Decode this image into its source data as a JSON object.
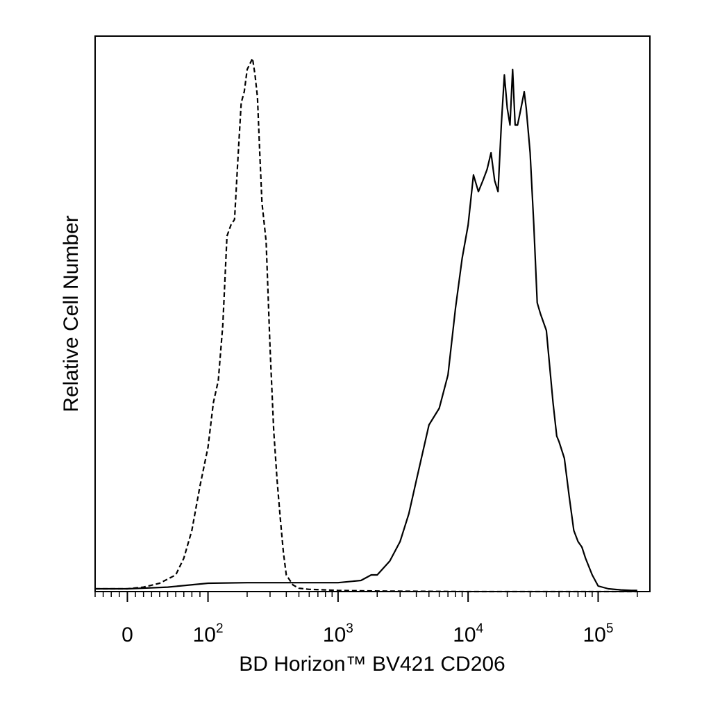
{
  "chart_data": {
    "type": "line",
    "title": "",
    "xlabel": "BD Horizon™ BV421 CD206",
    "ylabel": "Relative Cell Number",
    "x_scale": "biexponential",
    "xlim": [
      -40,
      250000
    ],
    "ylim": [
      0,
      1.0
    ],
    "grid": false,
    "legend": "none",
    "x_ticks": [
      {
        "value": 0,
        "base": "0",
        "exp": ""
      },
      {
        "value": 100,
        "base": "10",
        "exp": "2"
      },
      {
        "value": 1000,
        "base": "10",
        "exp": "3"
      },
      {
        "value": 10000,
        "base": "10",
        "exp": "4"
      },
      {
        "value": 100000,
        "base": "10",
        "exp": "5"
      }
    ],
    "series": [
      {
        "style": "dashed",
        "color": "#000000",
        "x": [
          -40,
          0,
          20,
          40,
          60,
          70,
          80,
          90,
          100,
          110,
          120,
          130,
          140,
          150,
          160,
          170,
          180,
          190,
          200,
          210,
          220,
          230,
          240,
          250,
          260,
          280,
          300,
          320,
          340,
          360,
          380,
          400,
          450,
          500,
          600,
          800,
          1000,
          2000,
          10000,
          100000,
          200000
        ],
        "y": [
          0.005,
          0.005,
          0.008,
          0.015,
          0.03,
          0.06,
          0.11,
          0.19,
          0.26,
          0.34,
          0.38,
          0.48,
          0.64,
          0.66,
          0.67,
          0.78,
          0.88,
          0.9,
          0.94,
          0.95,
          0.96,
          0.93,
          0.89,
          0.79,
          0.7,
          0.63,
          0.44,
          0.29,
          0.2,
          0.13,
          0.07,
          0.03,
          0.012,
          0.006,
          0.004,
          0.003,
          0.002,
          0.001,
          0.0,
          0.0,
          0.0
        ]
      },
      {
        "style": "solid",
        "color": "#000000",
        "x": [
          -40,
          0,
          50,
          100,
          200,
          500,
          1000,
          1500,
          1800,
          2000,
          2500,
          3000,
          3500,
          4000,
          5000,
          6000,
          7000,
          8000,
          9000,
          10000,
          11000,
          12000,
          13000,
          14000,
          15000,
          16000,
          17000,
          18000,
          19000,
          20000,
          21000,
          22000,
          23000,
          24000,
          25000,
          26000,
          27000,
          28000,
          30000,
          32000,
          34000,
          36000,
          40000,
          45000,
          48000,
          50000,
          55000,
          60000,
          65000,
          70000,
          75000,
          80000,
          90000,
          100000,
          120000,
          150000,
          180000,
          200000
        ],
        "y": [
          0.005,
          0.005,
          0.008,
          0.015,
          0.016,
          0.016,
          0.016,
          0.02,
          0.03,
          0.03,
          0.055,
          0.09,
          0.14,
          0.2,
          0.3,
          0.33,
          0.39,
          0.51,
          0.6,
          0.66,
          0.75,
          0.72,
          0.74,
          0.76,
          0.79,
          0.74,
          0.72,
          0.84,
          0.93,
          0.87,
          0.84,
          0.94,
          0.84,
          0.84,
          0.86,
          0.88,
          0.9,
          0.87,
          0.79,
          0.66,
          0.52,
          0.5,
          0.47,
          0.34,
          0.28,
          0.27,
          0.24,
          0.17,
          0.11,
          0.09,
          0.08,
          0.06,
          0.03,
          0.01,
          0.005,
          0.003,
          0.002,
          0.002
        ]
      }
    ]
  }
}
